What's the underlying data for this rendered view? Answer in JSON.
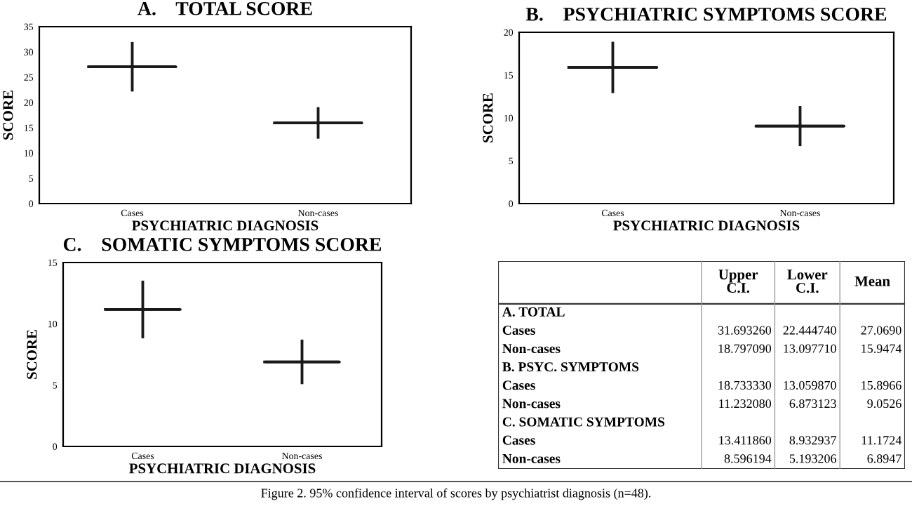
{
  "chart_data": [
    {
      "type": "box",
      "title": "A.    TOTAL SCORE",
      "xlabel": "PSYCHIATRIC DIAGNOSIS",
      "ylabel": "SCORE",
      "categories": [
        "Cases",
        "Non-cases"
      ],
      "boxes": [
        {
          "low": 22.44,
          "q1": 27.07,
          "median": 27.07,
          "q3": 27.07,
          "high": 31.69
        },
        {
          "low": 13.1,
          "q1": 15.95,
          "median": 15.95,
          "q3": 15.95,
          "high": 18.8
        }
      ],
      "color": "#1a1a1a",
      "ylim": [
        0,
        35
      ],
      "yticks": [
        0,
        5,
        10,
        15,
        20,
        25,
        30,
        35
      ]
    },
    {
      "type": "box",
      "title": "B.    PSYCHIATRIC SYMPTOMS SCORE",
      "xlabel": "PSYCHIATRIC DIAGNOSIS",
      "ylabel": "SCORE",
      "categories": [
        "Cases",
        "Non-cases"
      ],
      "boxes": [
        {
          "low": 13.06,
          "q1": 15.9,
          "median": 15.9,
          "q3": 15.9,
          "high": 18.73
        },
        {
          "low": 6.87,
          "q1": 9.05,
          "median": 9.05,
          "q3": 9.05,
          "high": 11.23
        }
      ],
      "color": "#1a1a1a",
      "ylim": [
        0,
        20
      ],
      "yticks": [
        0,
        5,
        10,
        15,
        20
      ]
    },
    {
      "type": "box",
      "title": "C.    SOMATIC SYMPTOMS SCORE",
      "xlabel": "PSYCHIATRIC DIAGNOSIS",
      "ylabel": "SCORE",
      "categories": [
        "Cases",
        "Non-cases"
      ],
      "boxes": [
        {
          "low": 8.93,
          "q1": 11.17,
          "median": 11.17,
          "q3": 11.17,
          "high": 13.41
        },
        {
          "low": 5.19,
          "q1": 6.89,
          "median": 6.89,
          "q3": 6.89,
          "high": 8.6
        }
      ],
      "color": "#1a1a1a",
      "ylim": [
        0,
        15
      ],
      "yticks": [
        0,
        5,
        10,
        15
      ]
    },
    {
      "type": "other",
      "categories": [
        "A. TOTAL",
        "Cases",
        "Non-cases",
        "B. PSYC. SYMPTOMS",
        "Cases",
        "Non-cases",
        "C. SOMATIC SYMPTOMS",
        "Cases",
        "Non-cases"
      ],
      "series": [
        {
          "name": "Upper\nC.I.",
          "values": [
            null,
            31.69326,
            18.79709,
            null,
            18.73333,
            11.23208,
            null,
            13.41186,
            8.596194
          ],
          "value_labels": [
            null,
            "31.693260",
            "18.797090",
            null,
            "18.733330",
            "11.232080",
            null,
            "13.411860",
            "8.596194"
          ]
        },
        {
          "name": "Lower\nC.I.",
          "values": [
            null,
            22.44474,
            13.09771,
            null,
            13.05987,
            6.873123,
            null,
            8.932937,
            5.193206
          ],
          "value_labels": [
            null,
            "22.444740",
            "13.097710",
            null,
            "13.059870",
            "6.873123",
            null,
            "8.932937",
            "5.193206"
          ]
        },
        {
          "name": "Mean",
          "values": [
            null,
            27.069,
            15.9474,
            null,
            15.8966,
            9.0526,
            null,
            11.1724,
            6.8947
          ],
          "value_labels": [
            null,
            "27.0690",
            "15.9474",
            null,
            "15.8966",
            "9.0526",
            null,
            "11.1724",
            "6.8947"
          ]
        }
      ],
      "annotations": [
        "Figure 2. 95% confidence interval of scores by psychiatrist diagnosis (n=48)."
      ]
    }
  ]
}
